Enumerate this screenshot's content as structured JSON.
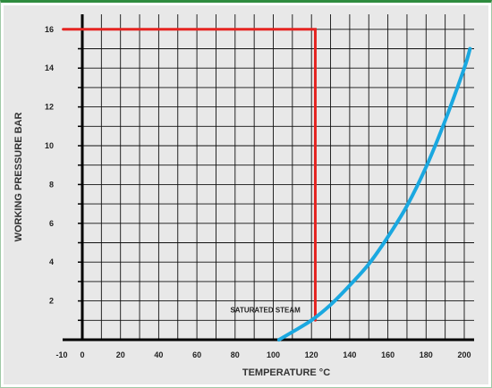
{
  "chart_data": {
    "type": "line",
    "title": "",
    "xlabel": "TEMPERATURE °C",
    "ylabel": "WORKING PRESSURE BAR",
    "xlim": [
      -10,
      205
    ],
    "ylim": [
      0,
      16.5
    ],
    "x_ticks": [
      -10,
      0,
      20,
      40,
      60,
      80,
      100,
      120,
      140,
      160,
      180,
      200
    ],
    "y_ticks": [
      2,
      4,
      6,
      8,
      10,
      12,
      14,
      16
    ],
    "grid": true,
    "series": [
      {
        "name": "",
        "color": "#e52421",
        "x": [
          -10,
          122,
          122
        ],
        "y": [
          16,
          16,
          1
        ]
      },
      {
        "name": "",
        "color": "#1aa8e0",
        "x": [
          103,
          110,
          120,
          130,
          140,
          150,
          160,
          170,
          180,
          190,
          200,
          203
        ],
        "y": [
          0,
          0.4,
          1.0,
          1.8,
          2.8,
          3.9,
          5.3,
          6.9,
          8.9,
          11.3,
          14.0,
          15.0
        ]
      }
    ],
    "annotations": [
      {
        "text": "SATURATED STEAM",
        "x": 122,
        "y": 1.5
      }
    ]
  }
}
